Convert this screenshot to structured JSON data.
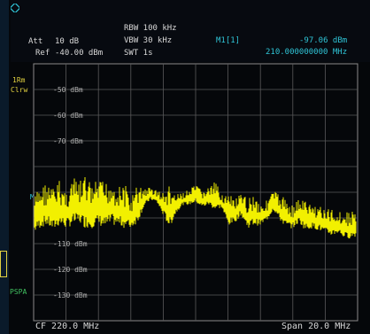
{
  "header": {
    "att_label": "Att",
    "att_value": "10 dB",
    "ref_label": "Ref",
    "ref_value": "-40.00 dBm",
    "rbw": "RBW 100 kHz",
    "vbw": "VBW 30 kHz",
    "swt": "SWT 1s",
    "marker_label": "M1[1]",
    "marker_level": "-97.06 dBm",
    "marker_freq": "210.000000000 MHz"
  },
  "side_labels": {
    "trace_mode_1": "1Rm",
    "trace_mode_2": "Clrw",
    "marker_tag": "M",
    "mode_tag": "PSPA"
  },
  "footer": {
    "cf": "CF 220.0 MHz",
    "span": "Span 20.0 MHz"
  },
  "colors": {
    "trace": "#f2f000",
    "grid": "#5a5a5a",
    "accent": "#2fc4d6"
  },
  "chart_data": {
    "type": "line",
    "xlabel": "",
    "ylabel": "",
    "xlim": [
      210.0,
      230.0
    ],
    "ylim": [
      -140,
      -40
    ],
    "y_ticks": [
      {
        "value": -50,
        "label": "-50 dBm"
      },
      {
        "value": -60,
        "label": "-60 dBm"
      },
      {
        "value": -70,
        "label": "-70 dBm"
      },
      {
        "value": -110,
        "label": "-110 dBm"
      },
      {
        "value": -120,
        "label": "-120 dBm"
      },
      {
        "value": -130,
        "label": "-130 dBm"
      }
    ],
    "grid": true,
    "series": [
      {
        "x": [
          210.0,
          210.4,
          210.8,
          211.2,
          211.6,
          212.0,
          212.4,
          212.8,
          213.2,
          213.6,
          214.0,
          214.4,
          214.8,
          215.2,
          215.6,
          216.0,
          216.4,
          216.8,
          217.2,
          217.6,
          218.0,
          218.4,
          218.8,
          219.2,
          219.6,
          220.0,
          220.4,
          220.8,
          221.2,
          221.6,
          222.0,
          222.4,
          222.8,
          223.2,
          223.6,
          224.0,
          224.4,
          224.8,
          225.2,
          225.6,
          226.0,
          226.4,
          226.8,
          227.2,
          227.6,
          228.0,
          228.4,
          228.8,
          229.2,
          229.6,
          230.0
        ],
        "y_high": [
          -92,
          -87,
          -86,
          -88,
          -85,
          -89,
          -84,
          -86,
          -83,
          -87,
          -85,
          -86,
          -84,
          -88,
          -86,
          -92,
          -87,
          -88,
          -88,
          -89,
          -90,
          -87,
          -91,
          -90,
          -89,
          -87,
          -89,
          -88,
          -86,
          -90,
          -91,
          -92,
          -91,
          -92,
          -90,
          -94,
          -93,
          -89,
          -91,
          -92,
          -95,
          -92,
          -93,
          -95,
          -94,
          -97,
          -96,
          -97,
          -98,
          -97,
          -97
        ],
        "y_low": [
          -106,
          -104,
          -103,
          -105,
          -103,
          -104,
          -103,
          -102,
          -104,
          -104,
          -103,
          -104,
          -103,
          -103,
          -104,
          -104,
          -102,
          -96,
          -93,
          -94,
          -99,
          -104,
          -98,
          -95,
          -95,
          -94,
          -96,
          -95,
          -97,
          -96,
          -103,
          -102,
          -99,
          -104,
          -103,
          -103,
          -101,
          -97,
          -101,
          -104,
          -104,
          -102,
          -105,
          -104,
          -105,
          -106,
          -107,
          -106,
          -108,
          -108,
          -107
        ]
      }
    ]
  }
}
